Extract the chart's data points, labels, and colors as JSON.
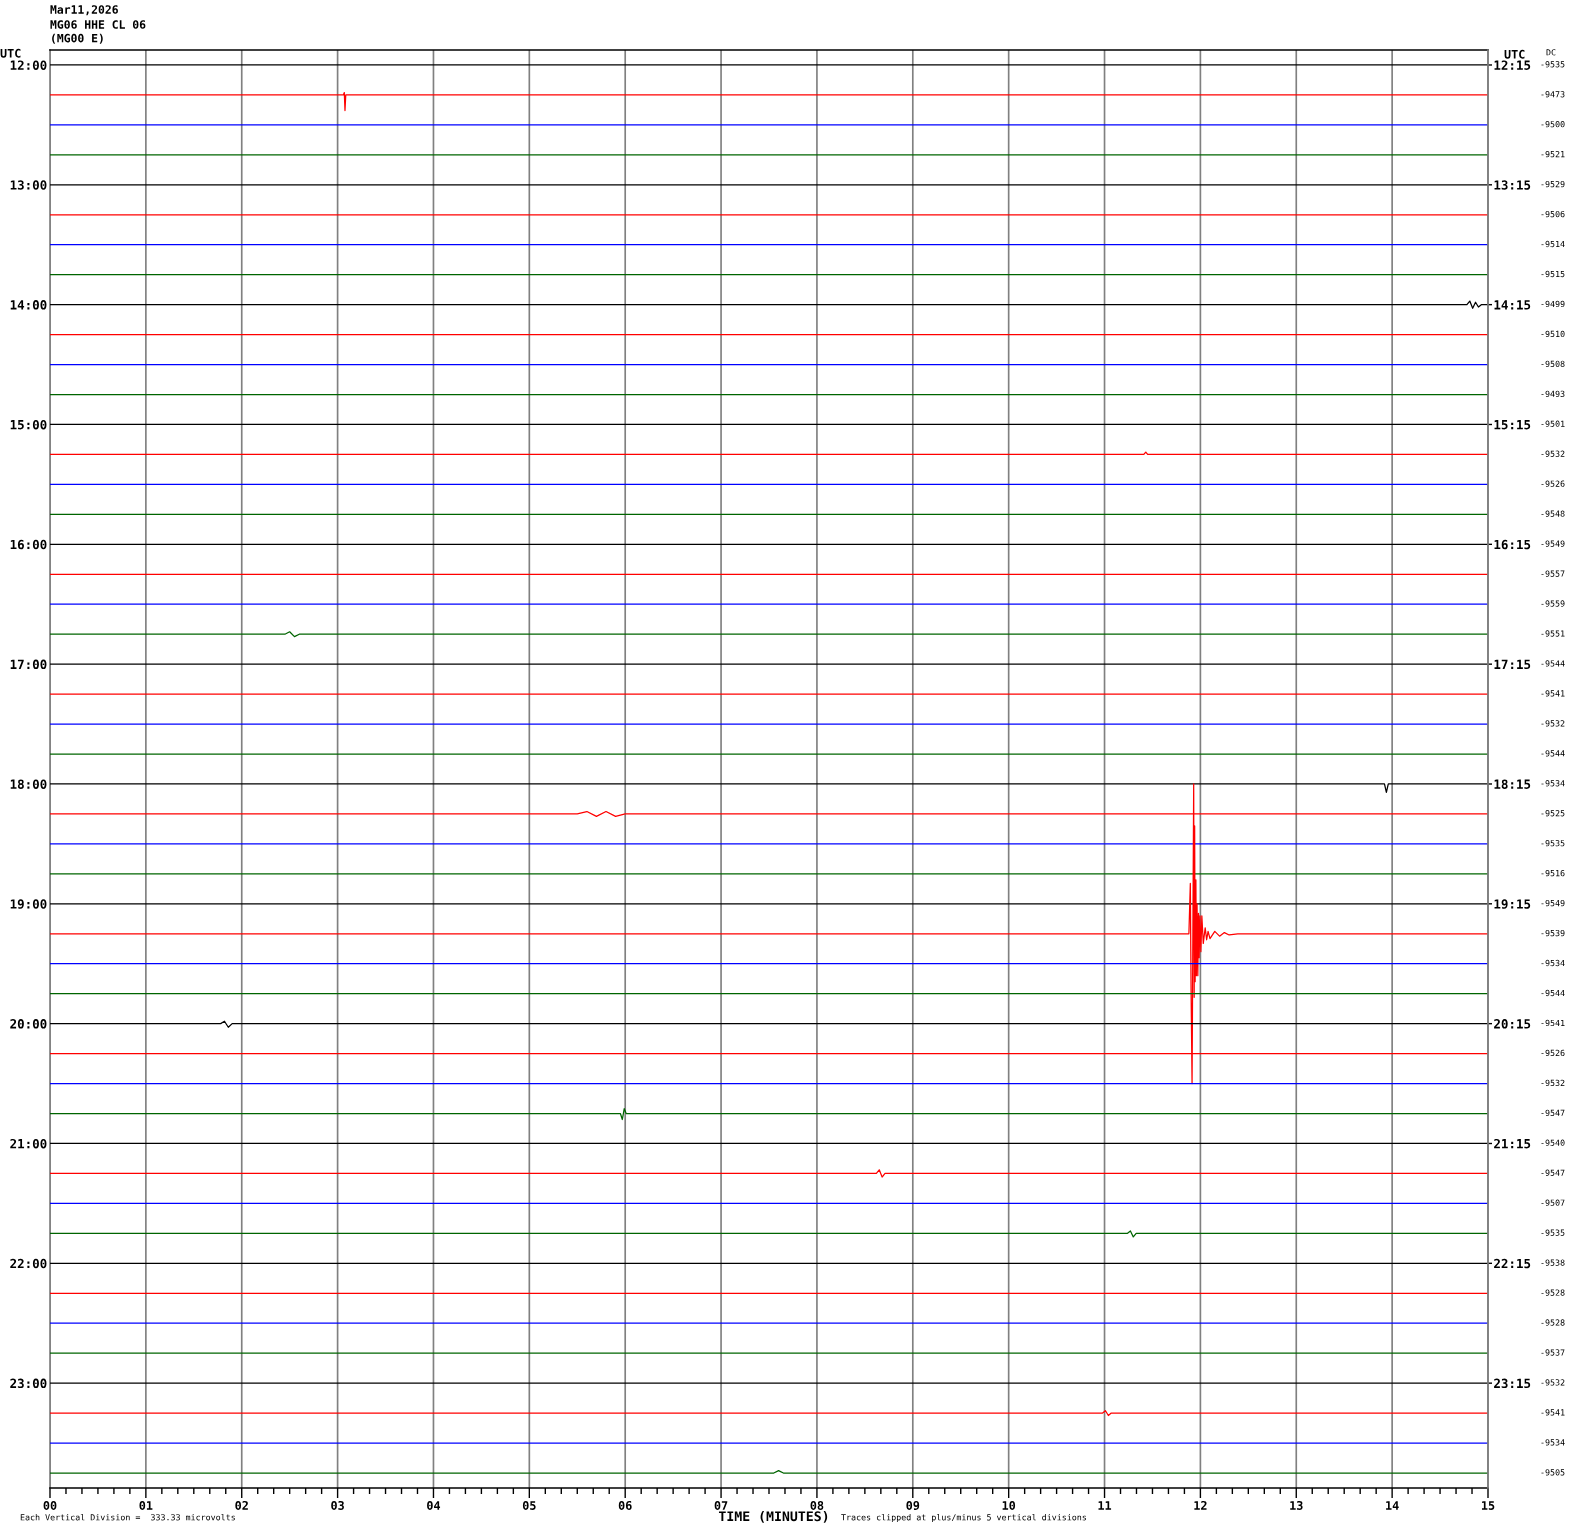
{
  "chart_data": {
    "type": "line",
    "title": "Mar11,2026",
    "subtitle": "MG06 HHE CL 06\n(MG00 E)",
    "xlabel": "TIME (MINUTES)",
    "ylabel": "UTC",
    "y2label": "UTC",
    "annotations": [
      "Each Vertical Division =  333.33 microvolts",
      "Traces clipped at plus/minus 5 vertical divisions",
      "DC",
      "-9535",
      "-9473",
      "-9500",
      "-9521",
      "-9529",
      "-9506",
      "-9514",
      "-9515",
      "-9499",
      "-9510",
      "-9508",
      "-9493",
      "-9501",
      "-9532",
      "-9526",
      "-9548",
      "-9549",
      "-9557",
      "-9559",
      "-9551",
      "-9544",
      "-9541",
      "-9532",
      "-9544",
      "-9534",
      "-9525",
      "-9535",
      "-9516",
      "-9549",
      "-9539",
      "-9534",
      "-9544",
      "-9541",
      "-9526",
      "-9532",
      "-9547",
      "-9540",
      "-9547",
      "-9507",
      "-9535",
      "-9538",
      "-9528",
      "-9528",
      "-9537",
      "-9532",
      "-9541",
      "-9534",
      "-9505"
    ],
    "grid": "x",
    "xlim": [
      0,
      15
    ],
    "xticks": [
      {
        "value": 0,
        "label": "00"
      },
      {
        "value": 1,
        "label": "01"
      },
      {
        "value": 2,
        "label": "02"
      },
      {
        "value": 3,
        "label": "03"
      },
      {
        "value": 4,
        "label": "04"
      },
      {
        "value": 5,
        "label": "05"
      },
      {
        "value": 6,
        "label": "06"
      },
      {
        "value": 7,
        "label": "07"
      },
      {
        "value": 8,
        "label": "08"
      },
      {
        "value": 9,
        "label": "09"
      },
      {
        "value": 10,
        "label": "10"
      },
      {
        "value": 11,
        "label": "11"
      },
      {
        "value": 12,
        "label": "12"
      },
      {
        "value": 13,
        "label": "13"
      },
      {
        "value": 14,
        "label": "14"
      },
      {
        "value": 15,
        "label": "15"
      },
      {
        "value": 0.1667,
        "label": null
      },
      {
        "value": 0.3333,
        "label": null
      },
      {
        "value": 0.5,
        "label": null
      },
      {
        "value": 0.6667,
        "label": null
      },
      {
        "value": 0.8333,
        "label": null
      },
      {
        "value": 1.1667,
        "label": null
      },
      {
        "value": 1.3333,
        "label": null
      },
      {
        "value": 1.5,
        "label": null
      },
      {
        "value": 1.6667,
        "label": null
      },
      {
        "value": 1.8333,
        "label": null
      },
      {
        "value": 2.1667,
        "label": null
      },
      {
        "value": 2.3333,
        "label": null
      },
      {
        "value": 2.5,
        "label": null
      },
      {
        "value": 2.6667,
        "label": null
      },
      {
        "value": 2.8333,
        "label": null
      },
      {
        "value": 3.1667,
        "label": null
      },
      {
        "value": 3.3333,
        "label": null
      },
      {
        "value": 3.5,
        "label": null
      },
      {
        "value": 3.6667,
        "label": null
      },
      {
        "value": 3.8333,
        "label": null
      },
      {
        "value": 4.1667,
        "label": null
      },
      {
        "value": 4.3333,
        "label": null
      },
      {
        "value": 4.5,
        "label": null
      },
      {
        "value": 4.6667,
        "label": null
      },
      {
        "value": 4.8333,
        "label": null
      },
      {
        "value": 5.1667,
        "label": null
      },
      {
        "value": 5.3333,
        "label": null
      },
      {
        "value": 5.5,
        "label": null
      },
      {
        "value": 5.6667,
        "label": null
      },
      {
        "value": 5.8333,
        "label": null
      },
      {
        "value": 6.1667,
        "label": null
      },
      {
        "value": 6.3333,
        "label": null
      },
      {
        "value": 6.5,
        "label": null
      },
      {
        "value": 6.6667,
        "label": null
      },
      {
        "value": 6.8333,
        "label": null
      },
      {
        "value": 7.1667,
        "label": null
      },
      {
        "value": 7.3333,
        "label": null
      },
      {
        "value": 7.5,
        "label": null
      },
      {
        "value": 7.6667,
        "label": null
      },
      {
        "value": 7.8333,
        "label": null
      },
      {
        "value": 8.1667,
        "label": null
      },
      {
        "value": 8.3333,
        "label": null
      },
      {
        "value": 8.5,
        "label": null
      },
      {
        "value": 8.6667,
        "label": null
      },
      {
        "value": 8.8333,
        "label": null
      },
      {
        "value": 9.1667,
        "label": null
      },
      {
        "value": 9.3333,
        "label": null
      },
      {
        "value": 9.5,
        "label": null
      },
      {
        "value": 9.6667,
        "label": null
      },
      {
        "value": 9.8333,
        "label": null
      },
      {
        "value": 10.1667,
        "label": null
      },
      {
        "value": 10.3333,
        "label": null
      },
      {
        "value": 10.5,
        "label": null
      },
      {
        "value": 10.6667,
        "label": null
      },
      {
        "value": 10.8333,
        "label": null
      },
      {
        "value": 11.1667,
        "label": null
      },
      {
        "value": 11.3333,
        "label": null
      },
      {
        "value": 11.5,
        "label": null
      },
      {
        "value": 11.6667,
        "label": null
      },
      {
        "value": 11.8333,
        "label": null
      },
      {
        "value": 12.1667,
        "label": null
      },
      {
        "value": 12.3333,
        "label": null
      },
      {
        "value": 12.5,
        "label": null
      },
      {
        "value": 12.6667,
        "label": null
      },
      {
        "value": 12.8333,
        "label": null
      },
      {
        "value": 13.1667,
        "label": null
      },
      {
        "value": 13.3333,
        "label": null
      },
      {
        "value": 13.5,
        "label": null
      },
      {
        "value": 13.6667,
        "label": null
      },
      {
        "value": 13.8333,
        "label": null
      },
      {
        "value": 14.1667,
        "label": null
      },
      {
        "value": 14.3333,
        "label": null
      },
      {
        "value": 14.5,
        "label": null
      },
      {
        "value": 14.6667,
        "label": null
      },
      {
        "value": 14.8333,
        "label": null
      }
    ],
    "ylim": [
      23.875,
      11.875
    ],
    "yticks": [
      {
        "value": 12,
        "label": "12:00"
      },
      {
        "value": 13,
        "label": "13:00"
      },
      {
        "value": 14,
        "label": "14:00"
      },
      {
        "value": 15,
        "label": "15:00"
      },
      {
        "value": 16,
        "label": "16:00"
      },
      {
        "value": 17,
        "label": "17:00"
      },
      {
        "value": 18,
        "label": "18:00"
      },
      {
        "value": 19,
        "label": "19:00"
      },
      {
        "value": 20,
        "label": "20:00"
      },
      {
        "value": 21,
        "label": "21:00"
      },
      {
        "value": 22,
        "label": "22:00"
      },
      {
        "value": 23,
        "label": "23:00"
      }
    ],
    "y2lim": [
      24.125,
      12.125
    ],
    "y2ticks": [
      {
        "value": 12.25,
        "label": "12:15"
      },
      {
        "value": 13.25,
        "label": "13:15"
      },
      {
        "value": 14.25,
        "label": "14:15"
      },
      {
        "value": 15.25,
        "label": "15:15"
      },
      {
        "value": 16.25,
        "label": "16:15"
      },
      {
        "value": 17.25,
        "label": "17:15"
      },
      {
        "value": 18.25,
        "label": "18:15"
      },
      {
        "value": 19.25,
        "label": "19:15"
      },
      {
        "value": 20.25,
        "label": "20:15"
      },
      {
        "value": 21.25,
        "label": "21:15"
      },
      {
        "value": 22.25,
        "label": "22:15"
      },
      {
        "value": 23.25,
        "label": "23:15"
      }
    ],
    "series": [
      {
        "color": "#000000",
        "x": [
          0,
          15
        ],
        "values": [
          12,
          12
        ]
      },
      {
        "color": "#ff0000",
        "x": [
          0,
          3.06,
          3.07,
          3.077,
          3.085,
          15
        ],
        "values": [
          12.25,
          12.25,
          12.23,
          12.38,
          12.25,
          12.25
        ]
      },
      {
        "color": "#0000ff",
        "x": [
          0,
          15
        ],
        "values": [
          12.5,
          12.5
        ]
      },
      {
        "color": "#006400",
        "x": [
          0,
          15
        ],
        "values": [
          12.75,
          12.75
        ]
      },
      {
        "color": "#000000",
        "x": [
          0,
          15
        ],
        "values": [
          13,
          13
        ]
      },
      {
        "color": "#ff0000",
        "x": [
          0,
          15
        ],
        "values": [
          13.25,
          13.25
        ]
      },
      {
        "color": "#0000ff",
        "x": [
          0,
          15
        ],
        "values": [
          13.5,
          13.5
        ]
      },
      {
        "color": "#006400",
        "x": [
          0,
          15
        ],
        "values": [
          13.75,
          13.75
        ]
      },
      {
        "color": "#000000",
        "x": [
          0,
          14.78,
          14.81,
          14.84,
          14.87,
          14.9,
          14.93,
          15
        ],
        "values": [
          14,
          14,
          13.97,
          14.03,
          13.98,
          14.02,
          14,
          14
        ]
      },
      {
        "color": "#ff0000",
        "x": [
          0,
          15
        ],
        "values": [
          14.25,
          14.25
        ]
      },
      {
        "color": "#0000ff",
        "x": [
          0,
          15
        ],
        "values": [
          14.5,
          14.5
        ]
      },
      {
        "color": "#006400",
        "x": [
          0,
          15
        ],
        "values": [
          14.75,
          14.75
        ]
      },
      {
        "color": "#000000",
        "x": [
          0,
          15
        ],
        "values": [
          15,
          15
        ]
      },
      {
        "color": "#ff0000",
        "x": [
          0,
          11.41,
          11.43,
          11.45,
          15
        ],
        "values": [
          15.25,
          15.25,
          15.23,
          15.25,
          15.25
        ]
      },
      {
        "color": "#0000ff",
        "x": [
          0,
          15
        ],
        "values": [
          15.5,
          15.5
        ]
      },
      {
        "color": "#006400",
        "x": [
          0,
          15
        ],
        "values": [
          15.75,
          15.75
        ]
      },
      {
        "color": "#000000",
        "x": [
          0,
          15
        ],
        "values": [
          16,
          16
        ]
      },
      {
        "color": "#ff0000",
        "x": [
          0,
          15
        ],
        "values": [
          16.25,
          16.25
        ]
      },
      {
        "color": "#0000ff",
        "x": [
          0,
          15
        ],
        "values": [
          16.5,
          16.5
        ]
      },
      {
        "color": "#006400",
        "x": [
          0,
          2.45,
          2.5,
          2.55,
          2.6,
          15
        ],
        "values": [
          16.75,
          16.75,
          16.73,
          16.77,
          16.75,
          16.75
        ]
      },
      {
        "color": "#000000",
        "x": [
          0,
          15
        ],
        "values": [
          17,
          17
        ]
      },
      {
        "color": "#ff0000",
        "x": [
          0,
          15
        ],
        "values": [
          17.25,
          17.25
        ]
      },
      {
        "color": "#0000ff",
        "x": [
          0,
          15
        ],
        "values": [
          17.5,
          17.5
        ]
      },
      {
        "color": "#006400",
        "x": [
          0,
          15
        ],
        "values": [
          17.75,
          17.75
        ]
      },
      {
        "color": "#000000",
        "x": [
          0,
          13.92,
          13.94,
          13.96,
          15
        ],
        "values": [
          18,
          18,
          18.07,
          18,
          18
        ]
      },
      {
        "color": "#ff0000",
        "x": [
          0,
          5.5,
          5.6,
          5.7,
          5.8,
          5.9,
          6.0,
          15
        ],
        "values": [
          18.25,
          18.25,
          18.23,
          18.27,
          18.23,
          18.27,
          18.25,
          18.25
        ]
      },
      {
        "color": "#0000ff",
        "x": [
          0,
          15
        ],
        "values": [
          18.5,
          18.5
        ]
      },
      {
        "color": "#006400",
        "x": [
          0,
          15
        ],
        "values": [
          18.75,
          18.75
        ]
      },
      {
        "color": "#000000",
        "x": [
          0,
          15
        ],
        "values": [
          19,
          19
        ]
      },
      {
        "color": "#ff0000",
        "x": [
          0,
          11.3,
          11.88,
          11.895,
          11.9,
          11.903,
          11.913,
          11.93,
          11.935,
          11.94,
          11.945,
          11.953,
          11.958,
          11.965,
          11.973,
          11.98,
          11.987,
          11.995,
          12.005,
          12.015,
          12.03,
          12.05,
          12.065,
          12.08,
          12.1,
          12.15,
          12.2,
          12.25,
          12.3,
          12.39,
          15
        ],
        "values": [
          19.25,
          19.25,
          19.25,
          18.83,
          19.4,
          19.73,
          20.5,
          18.0,
          19.78,
          18.35,
          19.65,
          18.8,
          19.6,
          19.0,
          19.6,
          19.08,
          19.45,
          19.1,
          19.4,
          19.1,
          19.33,
          19.2,
          19.3,
          19.23,
          19.29,
          19.23,
          19.27,
          19.24,
          19.26,
          19.25,
          19.25
        ]
      },
      {
        "color": "#0000ff",
        "x": [
          0,
          15
        ],
        "values": [
          19.5,
          19.5
        ]
      },
      {
        "color": "#006400",
        "x": [
          0,
          15
        ],
        "values": [
          19.75,
          19.75
        ]
      },
      {
        "color": "#000000",
        "x": [
          0,
          1.78,
          1.82,
          1.86,
          1.9,
          15
        ],
        "values": [
          20,
          20,
          19.98,
          20.03,
          20,
          20
        ]
      },
      {
        "color": "#ff0000",
        "x": [
          0,
          15
        ],
        "values": [
          20.25,
          20.25
        ]
      },
      {
        "color": "#0000ff",
        "x": [
          0,
          15
        ],
        "values": [
          20.5,
          20.5
        ]
      },
      {
        "color": "#006400",
        "x": [
          0,
          5.95,
          5.97,
          5.99,
          6.01,
          15
        ],
        "values": [
          20.75,
          20.75,
          20.8,
          20.71,
          20.75,
          20.75
        ]
      },
      {
        "color": "#000000",
        "x": [
          0,
          15
        ],
        "values": [
          21,
          21
        ]
      },
      {
        "color": "#ff0000",
        "x": [
          0,
          8.62,
          8.65,
          8.68,
          8.71,
          15
        ],
        "values": [
          21.25,
          21.25,
          21.22,
          21.28,
          21.25,
          21.25
        ]
      },
      {
        "color": "#0000ff",
        "x": [
          0,
          15
        ],
        "values": [
          21.5,
          21.5
        ]
      },
      {
        "color": "#006400",
        "x": [
          0,
          11.24,
          11.27,
          11.3,
          11.33,
          15
        ],
        "values": [
          21.75,
          21.75,
          21.73,
          21.78,
          21.75,
          21.75
        ]
      },
      {
        "color": "#000000",
        "x": [
          0,
          15
        ],
        "values": [
          22,
          22
        ]
      },
      {
        "color": "#ff0000",
        "x": [
          0,
          15
        ],
        "values": [
          22.25,
          22.25
        ]
      },
      {
        "color": "#0000ff",
        "x": [
          0,
          15
        ],
        "values": [
          22.5,
          22.5
        ]
      },
      {
        "color": "#006400",
        "x": [
          0,
          15
        ],
        "values": [
          22.75,
          22.75
        ]
      },
      {
        "color": "#000000",
        "x": [
          0,
          15
        ],
        "values": [
          23,
          23
        ]
      },
      {
        "color": "#ff0000",
        "x": [
          0,
          10.98,
          11.01,
          11.04,
          11.07,
          15
        ],
        "values": [
          23.25,
          23.25,
          23.23,
          23.27,
          23.25,
          23.25
        ]
      },
      {
        "color": "#0000ff",
        "x": [
          0,
          15
        ],
        "values": [
          23.5,
          23.5
        ]
      },
      {
        "color": "#006400",
        "x": [
          0,
          7.55,
          7.6,
          7.65,
          15
        ],
        "values": [
          23.75,
          23.75,
          23.73,
          23.75,
          23.75
        ]
      }
    ]
  }
}
